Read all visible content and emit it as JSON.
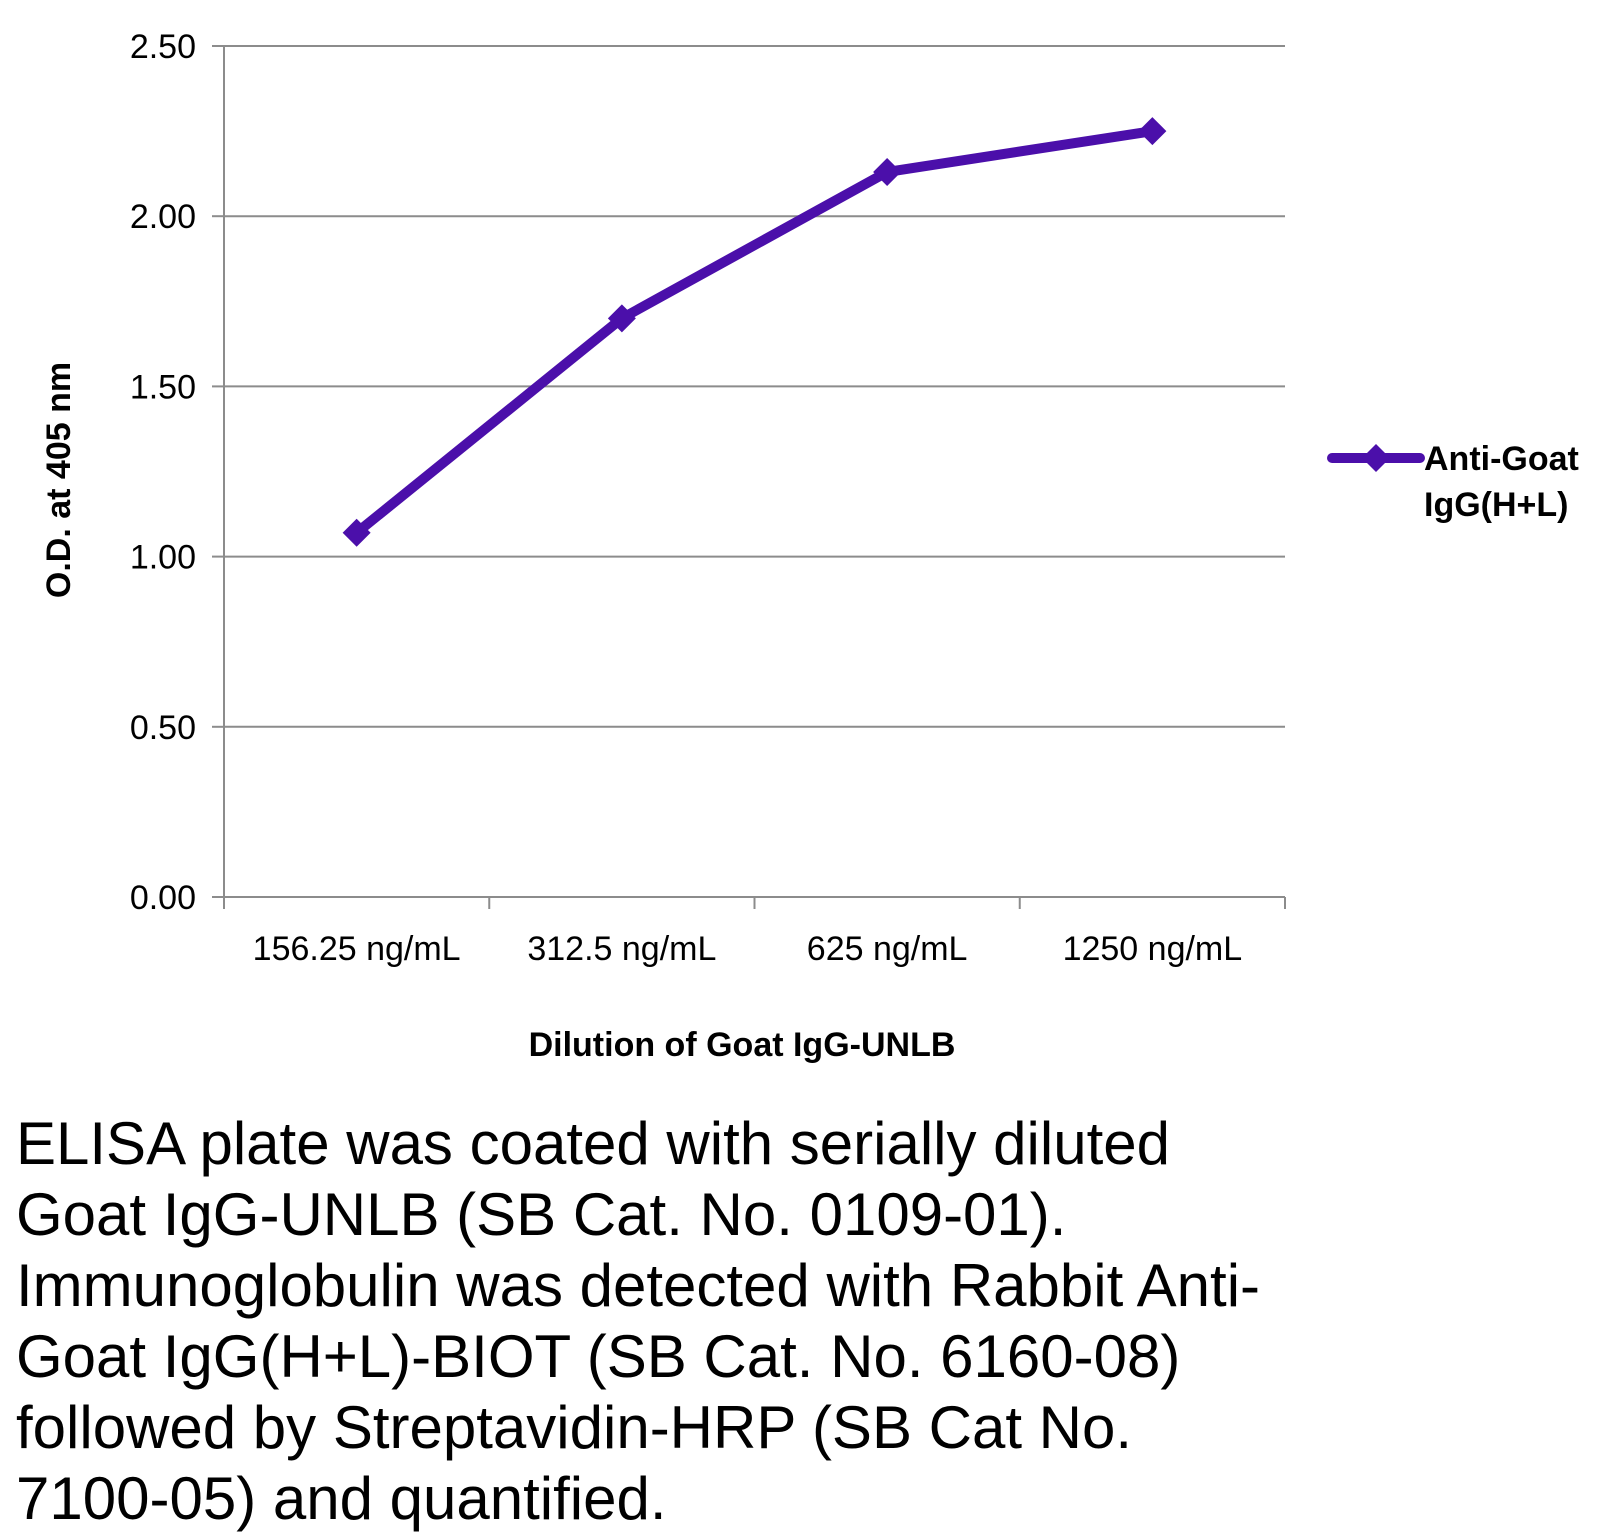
{
  "colors": {
    "series": "#4b0faa",
    "grid": "#8c8c8c",
    "axis": "#8c8c8c",
    "text": "#000000",
    "background": "#ffffff"
  },
  "chart_data": {
    "type": "line",
    "title": "",
    "xlabel": "Dilution of Goat IgG-UNLB",
    "ylabel": "O.D. at 405 nm",
    "categories": [
      "156.25 ng/mL",
      "312.5 ng/mL",
      "625 ng/mL",
      "1250 ng/mL"
    ],
    "series": [
      {
        "name": "Anti-Goat IgG(H+L)",
        "legend_lines": [
          "Anti-Goat",
          "IgG(H+L)"
        ],
        "marker": "diamond",
        "values": [
          1.07,
          1.7,
          2.13,
          2.25
        ]
      }
    ],
    "ylim": [
      0,
      2.5
    ],
    "yticks": [
      "0.00",
      "0.50",
      "1.00",
      "1.50",
      "2.00",
      "2.50"
    ],
    "grid": true,
    "legend": "right"
  },
  "caption": "ELISA plate was coated with serially diluted\nGoat IgG-UNLB (SB Cat. No. 0109-01).\nImmunoglobulin was detected with Rabbit Anti-\nGoat IgG(H+L)-BIOT (SB Cat. No. 6160-08)\nfollowed by Streptavidin-HRP (SB Cat No.\n7100-05) and quantified."
}
